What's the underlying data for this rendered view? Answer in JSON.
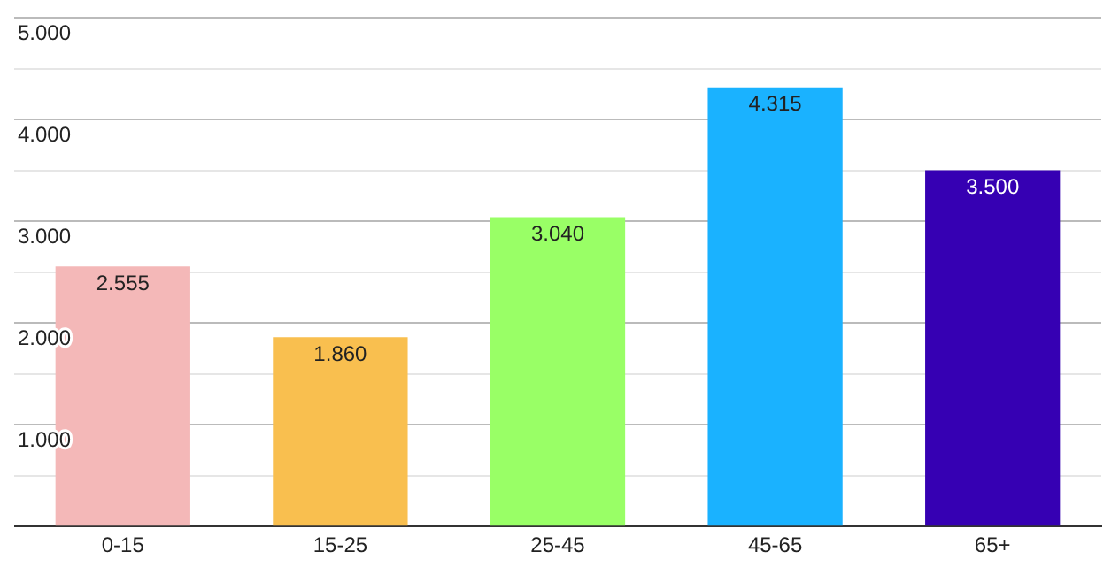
{
  "chart_data": {
    "type": "bar",
    "categories": [
      "0-15",
      "15-25",
      "25-45",
      "45-65",
      "65+"
    ],
    "values": [
      2555,
      1860,
      3040,
      4315,
      3500
    ],
    "colors": [
      "#f4b8b8",
      "#f9bf4f",
      "#99ff66",
      "#1ab2ff",
      "#3600b3"
    ],
    "value_labels": [
      "2.555",
      "1.860",
      "3.040",
      "4.315",
      "3.500"
    ],
    "ylim": [
      0,
      5000
    ],
    "yticks": [
      {
        "value": 0,
        "label": null
      },
      {
        "value": 500,
        "label": null
      },
      {
        "value": 1000,
        "label": "1.000"
      },
      {
        "value": 1500,
        "label": null
      },
      {
        "value": 2000,
        "label": "2.000"
      },
      {
        "value": 2500,
        "label": null
      },
      {
        "value": 3000,
        "label": "3.000"
      },
      {
        "value": 3500,
        "label": null
      },
      {
        "value": 4000,
        "label": "4.000"
      },
      {
        "value": 4500,
        "label": null
      },
      {
        "value": 5000,
        "label": "5.000"
      }
    ],
    "grid": "y"
  }
}
